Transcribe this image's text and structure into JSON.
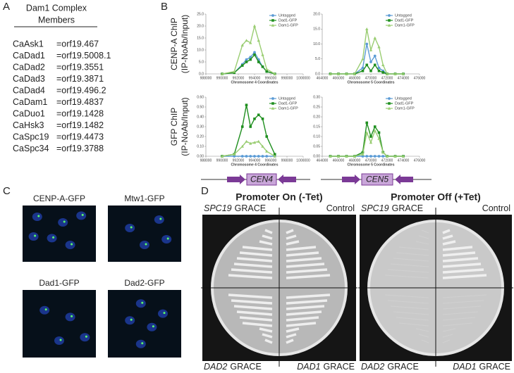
{
  "panel_labels": [
    "A",
    "B",
    "C",
    "D"
  ],
  "table": {
    "title": [
      "Dam1 Complex",
      "Members"
    ],
    "rows": [
      [
        "CaAsk1",
        "=orf19.467"
      ],
      [
        "CaDad1",
        "=orf19.5008.1"
      ],
      [
        "CaDad2",
        "=orf19.3551"
      ],
      [
        "CaDad3",
        "=orf19.3871"
      ],
      [
        "CaDad4",
        "=orf19.496.2"
      ],
      [
        "CaDam1",
        "=orf19.4837"
      ],
      [
        "CaDuo1",
        "=orf19.1428"
      ],
      [
        "CaHsk3",
        "=orf19.1482"
      ],
      [
        "CaSpc19",
        "=orf19.4473"
      ],
      [
        "CaSpc34",
        "=orf19.3788"
      ]
    ]
  },
  "chart_data": [
    {
      "type": "line",
      "ylabel": [
        "CENP-A ChIP",
        "(IP-NoAb/Input)"
      ],
      "xlabel": "Chromosome 4 Coordinates",
      "x": [
        990000,
        991500,
        992500,
        993000,
        993500,
        994000,
        994500,
        995000,
        995500,
        996500
      ],
      "xlim": [
        988000,
        1000000
      ],
      "xticks": [
        988000,
        990000,
        992000,
        994000,
        996000,
        998000,
        1000000
      ],
      "ylim": [
        0,
        25
      ],
      "yticks": [
        {
          "value": 0,
          "label": "0.0"
        },
        {
          "value": 5,
          "label": "5.0"
        },
        {
          "value": 10,
          "label": "10.0"
        },
        {
          "value": 15,
          "label": "15.0"
        },
        {
          "value": 20,
          "label": "20.0"
        },
        {
          "value": 25,
          "label": "25.0"
        }
      ],
      "legend": "upper right",
      "series": [
        {
          "name": "Untagged",
          "color": "#5b9bd5",
          "marker": "circle",
          "values": [
            0,
            0.5,
            4,
            6,
            7,
            9,
            6,
            3,
            1,
            0
          ]
        },
        {
          "name": "Dad1-GFP",
          "color": "#1f8f1f",
          "marker": "square",
          "values": [
            0,
            0.5,
            3.5,
            5,
            6,
            8,
            5,
            3,
            1,
            0
          ]
        },
        {
          "name": "Dam1-GFP",
          "color": "#9acd72",
          "marker": "triangle",
          "values": [
            0,
            1,
            12,
            14,
            13,
            20,
            14,
            8,
            2,
            0
          ]
        }
      ]
    },
    {
      "type": "line",
      "xlabel": "Chromosome 5 Coordinates",
      "x": [
        465000,
        466000,
        467000,
        468000,
        469000,
        469500,
        470000,
        470500,
        471000,
        471500,
        472000,
        473000,
        474000
      ],
      "xlim": [
        464000,
        476000
      ],
      "xticks": [
        464000,
        466000,
        468000,
        470000,
        472000,
        474000,
        476000
      ],
      "ylim": [
        0,
        20
      ],
      "yticks": [
        {
          "value": 0,
          "label": "0.0"
        },
        {
          "value": 5,
          "label": "5.0"
        },
        {
          "value": 10,
          "label": "10.0"
        },
        {
          "value": 15,
          "label": "15.0"
        },
        {
          "value": 20,
          "label": "20.0"
        }
      ],
      "legend": "upper right",
      "series": [
        {
          "name": "Untagged",
          "color": "#5b9bd5",
          "marker": "circle",
          "values": [
            0,
            0,
            0,
            0,
            2,
            10,
            4,
            6,
            2,
            1,
            0,
            0,
            0
          ]
        },
        {
          "name": "Dad1-GFP",
          "color": "#1f8f1f",
          "marker": "square",
          "values": [
            0,
            0,
            0,
            0,
            1,
            3,
            1,
            3,
            1,
            0.5,
            0,
            0,
            0
          ]
        },
        {
          "name": "Dam1-GFP",
          "color": "#9acd72",
          "marker": "triangle",
          "values": [
            0,
            0,
            0,
            0,
            5,
            15,
            8,
            12,
            9,
            3,
            0,
            0,
            0
          ]
        }
      ]
    },
    {
      "type": "line",
      "ylabel": [
        "GFP ChIP",
        "(IP-NoAb/Input)"
      ],
      "xlabel": "Chromosome 4 Coordinates",
      "x": [
        990000,
        991500,
        992500,
        993000,
        993500,
        994000,
        994500,
        995000,
        995500,
        996500
      ],
      "xlim": [
        988000,
        1000000
      ],
      "xticks": [
        988000,
        990000,
        992000,
        994000,
        996000,
        998000,
        1000000
      ],
      "ylim": [
        0,
        0.6
      ],
      "yticks": [
        {
          "value": 0,
          "label": "0.00"
        },
        {
          "value": 0.1,
          "label": "0.10"
        },
        {
          "value": 0.2,
          "label": "0.20"
        },
        {
          "value": 0.3,
          "label": "0.30"
        },
        {
          "value": 0.4,
          "label": "0.40"
        },
        {
          "value": 0.5,
          "label": "0.50"
        },
        {
          "value": 0.6,
          "label": "0.60"
        }
      ],
      "legend": "upper right",
      "series": [
        {
          "name": "Untagged",
          "color": "#5b9bd5",
          "marker": "circle",
          "values": [
            0,
            0,
            0,
            0,
            0,
            0,
            0,
            0,
            0,
            0
          ]
        },
        {
          "name": "Dad1-GFP",
          "color": "#1f8f1f",
          "marker": "square",
          "values": [
            0,
            0.02,
            0.3,
            0.52,
            0.3,
            0.38,
            0.42,
            0.38,
            0.2,
            0.02
          ]
        },
        {
          "name": "Dam1-GFP",
          "color": "#9acd72",
          "marker": "triangle",
          "values": [
            0,
            0.02,
            0.1,
            0.15,
            0.13,
            0.14,
            0.15,
            0.1,
            0.05,
            0
          ]
        }
      ]
    },
    {
      "type": "line",
      "xlabel": "Chromosome 5 Coordinates",
      "x": [
        465000,
        466000,
        467000,
        468000,
        469000,
        469500,
        470000,
        470500,
        471000,
        471500,
        472000,
        473000,
        474000
      ],
      "xlim": [
        464000,
        476000
      ],
      "xticks": [
        464000,
        466000,
        468000,
        470000,
        472000,
        474000,
        476000
      ],
      "ylim": [
        0,
        0.3
      ],
      "yticks": [
        {
          "value": 0,
          "label": "0.00"
        },
        {
          "value": 0.05,
          "label": "0.05"
        },
        {
          "value": 0.1,
          "label": "0.10"
        },
        {
          "value": 0.15,
          "label": "0.15"
        },
        {
          "value": 0.2,
          "label": "0.20"
        },
        {
          "value": 0.25,
          "label": "0.25"
        },
        {
          "value": 0.3,
          "label": "0.30"
        }
      ],
      "legend": "upper right",
      "series": [
        {
          "name": "Untagged",
          "color": "#5b9bd5",
          "marker": "circle",
          "values": [
            0,
            0,
            0,
            0,
            0,
            0,
            0,
            0,
            0,
            0,
            0,
            0,
            0
          ]
        },
        {
          "name": "Dad1-GFP",
          "color": "#1f8f1f",
          "marker": "square",
          "values": [
            0,
            0,
            0,
            0,
            0.02,
            0.17,
            0.1,
            0.15,
            0.12,
            0.02,
            0,
            0,
            0
          ]
        },
        {
          "name": "Dam1-GFP",
          "color": "#9acd72",
          "marker": "triangle",
          "values": [
            0,
            0,
            0,
            0,
            0.01,
            0.12,
            0.07,
            0.13,
            0.09,
            0.02,
            0,
            0,
            0
          ]
        }
      ]
    }
  ],
  "gene_diagrams": [
    "CEN4",
    "CEN5"
  ],
  "microscopy": [
    "CENP-A-GFP",
    "Mtw1-GFP",
    "Dad1-GFP",
    "Dad2-GFP"
  ],
  "plates": [
    {
      "title": "Promoter On (-Tet)",
      "quadrants": [
        {
          "gene": "SPC19",
          "strain": "GRACE"
        },
        {
          "strain": "Control"
        },
        {
          "gene": "DAD2",
          "strain": "GRACE"
        },
        {
          "gene": "DAD1",
          "strain": "GRACE"
        }
      ]
    },
    {
      "title": "Promoter Off (+Tet)",
      "quadrants": [
        {
          "gene": "SPC19",
          "strain": "GRACE"
        },
        {
          "strain": "Control"
        },
        {
          "gene": "DAD2",
          "strain": "GRACE"
        },
        {
          "gene": "DAD1",
          "strain": "GRACE"
        }
      ]
    }
  ]
}
